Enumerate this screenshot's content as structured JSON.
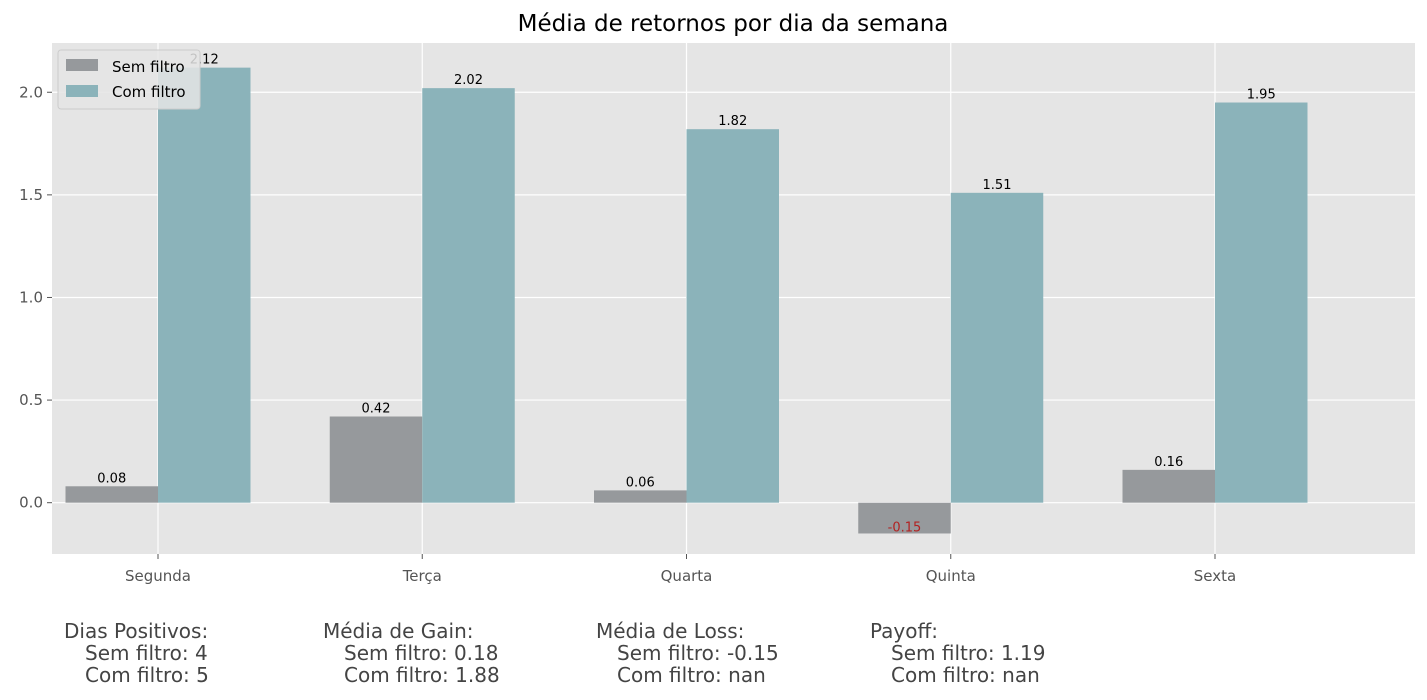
{
  "chart_data": {
    "type": "bar",
    "title": "Média de retornos por dia da semana",
    "categories": [
      "Segunda",
      "Terça",
      "Quarta",
      "Quinta",
      "Sexta"
    ],
    "series": [
      {
        "name": "Sem filtro",
        "values": [
          0.08,
          0.42,
          0.06,
          -0.15,
          0.16
        ],
        "labels": [
          "0.08",
          "0.42",
          "0.06",
          "-0.15",
          "0.16"
        ],
        "color": "#96999c"
      },
      {
        "name": "Com filtro",
        "values": [
          2.12,
          2.02,
          1.82,
          1.51,
          1.95
        ],
        "labels": [
          "2.12",
          "2.02",
          "1.82",
          "1.51",
          "1.95"
        ],
        "color": "#8bb3ba"
      }
    ],
    "negative_label_color": "#b22222",
    "ylim": [
      -0.25,
      2.24
    ],
    "yticks": [
      0.0,
      0.5,
      1.0,
      1.5,
      2.0
    ],
    "ytick_labels": [
      "0.0",
      "0.5",
      "1.0",
      "1.5",
      "2.0"
    ],
    "grid": true,
    "legend_position": "top-left",
    "background_color": "#e5e5e5"
  },
  "stats": {
    "positive_days": {
      "label": "Dias Positivos:",
      "sem": "Sem filtro: 4",
      "com": "Com filtro: 5"
    },
    "mean_gain": {
      "label": "Média de Gain:",
      "sem": "Sem filtro: 0.18",
      "com": "Com filtro: 1.88"
    },
    "mean_loss": {
      "label": "Média de Loss:",
      "sem": "Sem filtro: -0.15",
      "com": "Com filtro: nan"
    },
    "payoff": {
      "label": "Payoff:",
      "sem": "Sem filtro: 1.19",
      "com": "Com filtro: nan"
    }
  }
}
